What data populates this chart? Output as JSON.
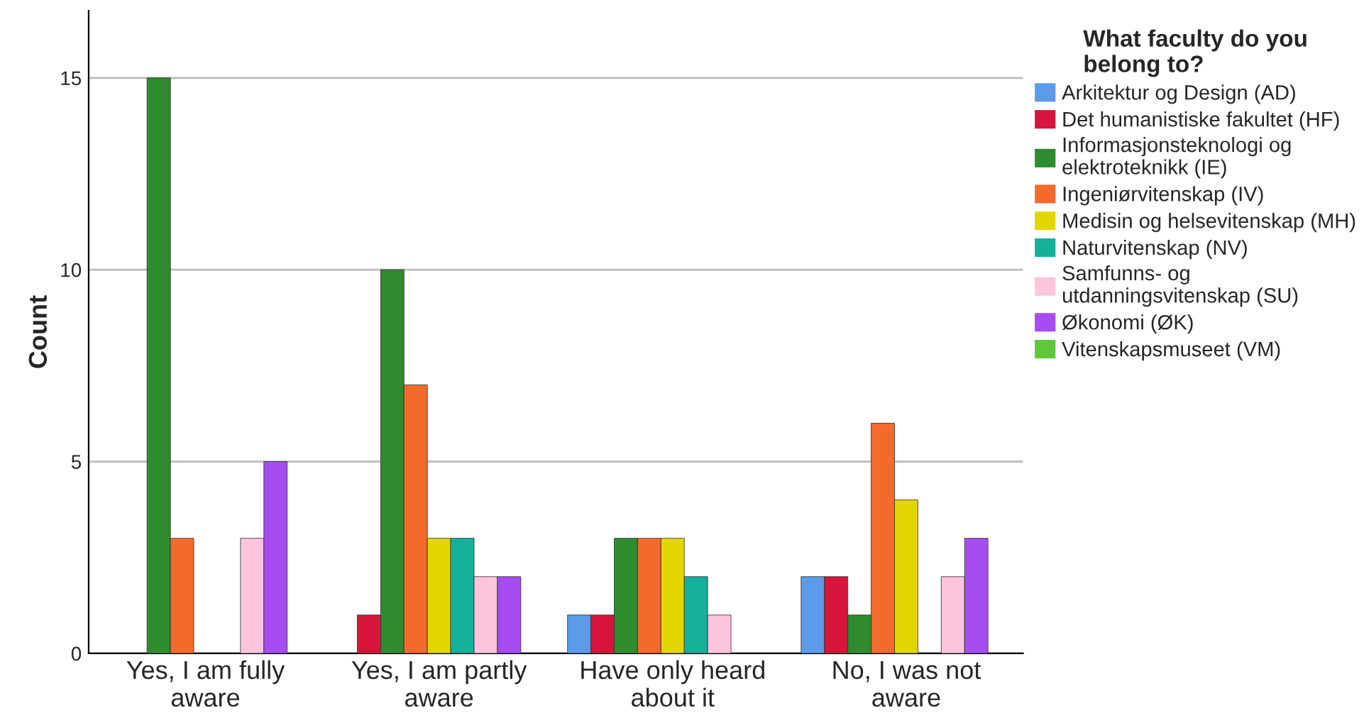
{
  "chart_data": {
    "type": "bar",
    "ylabel": "Count",
    "legend_title": "What faculty do you\nbelong to?",
    "categories": [
      "Yes, I am fully\naware",
      "Yes, I am partly\naware",
      "Have only heard\nabout it",
      "No, I was not\naware"
    ],
    "series": [
      {
        "name": "Arkitektur og Design (AD)",
        "color": "#5b9bea",
        "values": [
          null,
          null,
          1,
          2
        ]
      },
      {
        "name": "Det humanistiske fakultet (HF)",
        "color": "#d7143c",
        "values": [
          null,
          1,
          1,
          2
        ]
      },
      {
        "name": "Informasjonsteknologi og\nelektroteknikk (IE)",
        "color": "#2e8b2e",
        "values": [
          15,
          10,
          3,
          1
        ]
      },
      {
        "name": "Ingeniørvitenskap (IV)",
        "color": "#f26b2d",
        "values": [
          3,
          7,
          3,
          6
        ]
      },
      {
        "name": "Medisin og helsevitenskap (MH)",
        "color": "#e3d600",
        "values": [
          null,
          3,
          3,
          4
        ]
      },
      {
        "name": "Naturvitenskap (NV)",
        "color": "#14b09a",
        "values": [
          null,
          3,
          2,
          null
        ]
      },
      {
        "name": "Samfunns- og\nutdanningsvitenskap (SU)",
        "color": "#fcc5dd",
        "values": [
          3,
          2,
          1,
          2
        ]
      },
      {
        "name": "Økonomi (ØK)",
        "color": "#a64cf0",
        "values": [
          5,
          2,
          null,
          3
        ]
      },
      {
        "name": "Vitenskapsmuseet (VM)",
        "color": "#5fc83a",
        "values": [
          null,
          null,
          null,
          null
        ]
      }
    ],
    "ylim": [
      0,
      16.75
    ],
    "yticks": [
      0,
      5,
      10,
      15
    ],
    "grid": "y",
    "legend": "top right"
  }
}
